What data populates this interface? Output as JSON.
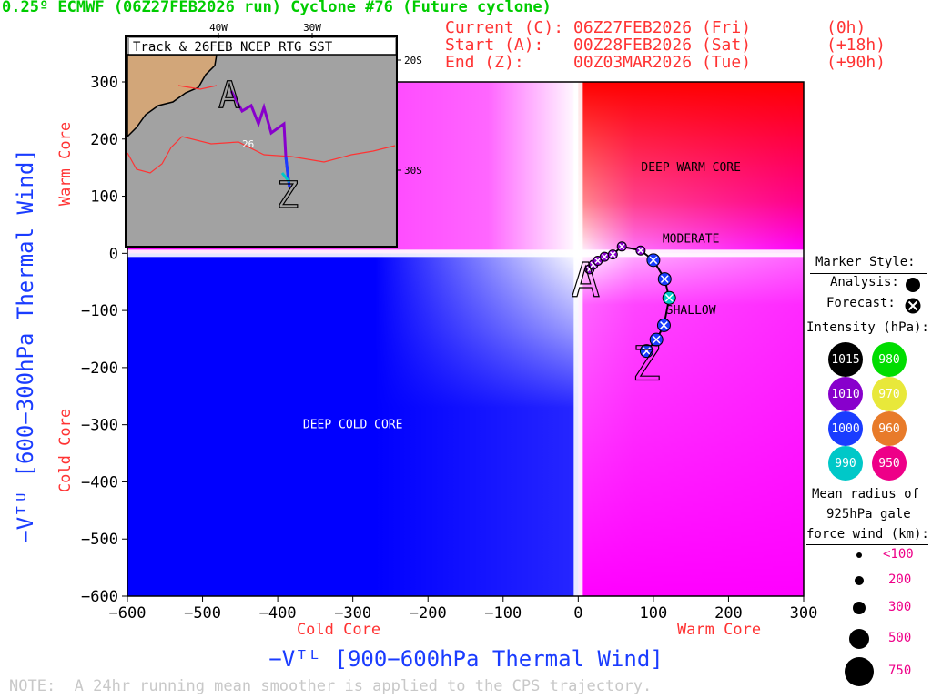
{
  "header": {
    "title": "0.25º ECMWF (06Z27FEB2026 run) Cyclone #76 (Future cyclone)",
    "current_label": "Current (C):",
    "current_time": "06Z27FEB2026 (Fri)",
    "current_offset": "(0h)",
    "start_label": "Start (A):",
    "start_time": "00Z28FEB2026 (Sat)",
    "start_offset": "(+18h)",
    "end_label": "End (Z):",
    "end_time": "00Z03MAR2026 (Tue)",
    "end_offset": "(+90h)"
  },
  "colors": {
    "title": "#00cc00",
    "time_text": "#ff3333",
    "axis_label_blue": "#1a3cff",
    "axis_label_red": "#ff3333",
    "note": "#c8c8c8",
    "warm": "#ff0000",
    "cold": "#0000ff",
    "mixed": "#ff00ff"
  },
  "chart_data": {
    "type": "scatter",
    "xlabel": "−Vᵀᴸ [900−600hPa Thermal Wind]",
    "ylabel": "−Vᵀᵁ [600−300hPa Thermal Wind]",
    "x_side_labels": {
      "cold": "Cold Core",
      "warm": "Warm Core"
    },
    "y_side_labels": {
      "cold": "Cold Core",
      "warm": "Warm Core"
    },
    "xlim": [
      -600,
      300
    ],
    "ylim": [
      -600,
      300
    ],
    "xticks": [
      -600,
      -500,
      -400,
      -300,
      -200,
      -100,
      0,
      100,
      200,
      300
    ],
    "yticks": [
      -600,
      -500,
      -400,
      -300,
      -200,
      -100,
      0,
      100,
      200,
      300
    ],
    "region_labels": [
      {
        "text": "DEEP WARM CORE",
        "x": 150,
        "y": 150
      },
      {
        "text": "MODERATE",
        "x": 150,
        "y": 25
      },
      {
        "text": "SHALLOW",
        "x": 150,
        "y": -100
      },
      {
        "text": "DEEP COLD CORE",
        "x": -300,
        "y": -300
      }
    ],
    "track": [
      {
        "x": 15,
        "y": -28,
        "pressure": 1010,
        "type": "forecast"
      },
      {
        "x": 20,
        "y": -20,
        "pressure": 1010,
        "type": "forecast"
      },
      {
        "x": 26,
        "y": -13,
        "pressure": 1010,
        "type": "forecast"
      },
      {
        "x": 35,
        "y": -6,
        "pressure": 1010,
        "type": "forecast"
      },
      {
        "x": 46,
        "y": -2,
        "pressure": 1010,
        "type": "forecast"
      },
      {
        "x": 58,
        "y": 12,
        "pressure": 1010,
        "type": "forecast"
      },
      {
        "x": 83,
        "y": 5,
        "pressure": 1010,
        "type": "forecast"
      },
      {
        "x": 100,
        "y": -12,
        "pressure": 1000,
        "type": "forecast"
      },
      {
        "x": 115,
        "y": -45,
        "pressure": 1000,
        "type": "forecast"
      },
      {
        "x": 121,
        "y": -78,
        "pressure": 990,
        "type": "forecast"
      },
      {
        "x": 114,
        "y": -126,
        "pressure": 1000,
        "type": "forecast"
      },
      {
        "x": 104,
        "y": -151,
        "pressure": 1000,
        "type": "forecast"
      },
      {
        "x": 91,
        "y": -171,
        "pressure": 1000,
        "type": "forecast"
      }
    ],
    "start_label": "A",
    "end_label": "Z"
  },
  "legend": {
    "marker_style_title": "Marker Style:",
    "analysis_label": "Analysis:",
    "forecast_label": "Forecast:",
    "intensity_title": "Intensity (hPa):",
    "intensity": [
      {
        "value": "1015",
        "color": "#000000"
      },
      {
        "value": "980",
        "color": "#00dd00"
      },
      {
        "value": "1010",
        "color": "#8800cc"
      },
      {
        "value": "970",
        "color": "#e8e83a"
      },
      {
        "value": "1000",
        "color": "#1a3cff"
      },
      {
        "value": "960",
        "color": "#e87b2a"
      },
      {
        "value": "990",
        "color": "#00c8c8"
      },
      {
        "value": "950",
        "color": "#ee0088"
      }
    ],
    "radius_title_1": "Mean radius of",
    "radius_title_2": "925hPa gale",
    "radius_title_3": "force wind (km):",
    "radius_sizes": [
      "<100",
      "200",
      "300",
      "500",
      "750"
    ]
  },
  "inset": {
    "title": "Track & 26FEB NCEP RTG SST",
    "lon_labels": [
      "40W",
      "30W"
    ],
    "lat_labels": [
      "20S",
      "30S"
    ],
    "sst_label": "26",
    "start_label": "A",
    "end_label": "Z"
  },
  "note": "NOTE:  A 24hr running mean smoother is applied to the CPS trajectory."
}
